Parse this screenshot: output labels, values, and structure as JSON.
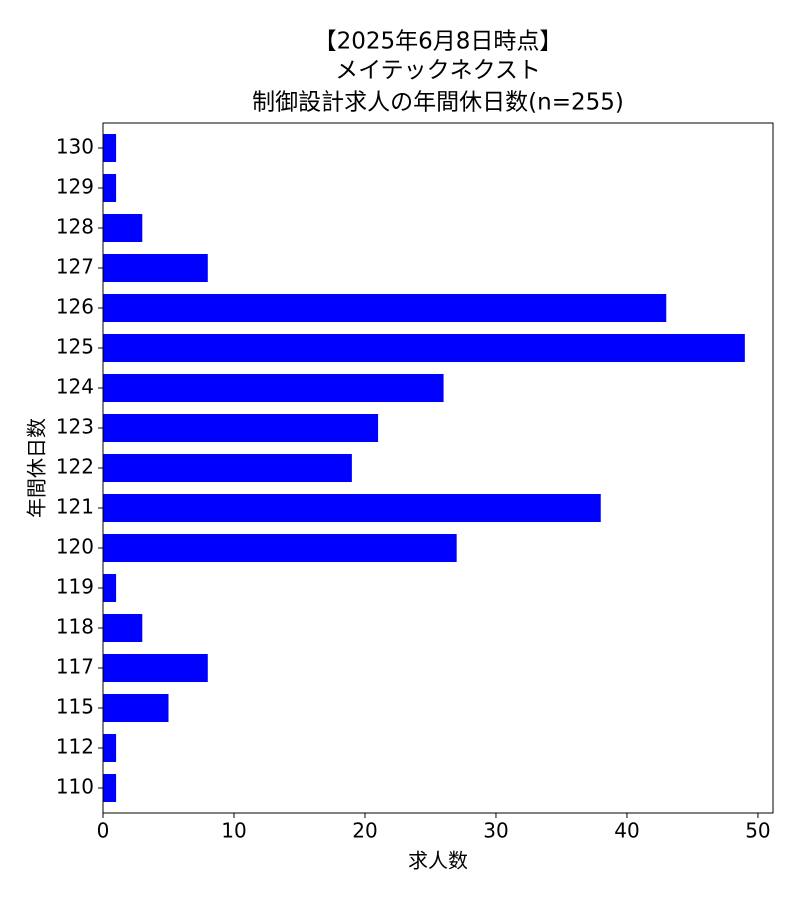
{
  "chart_data": {
    "type": "barh",
    "title": [
      "【2025年6月8日時点】",
      "メイテックネクスト",
      "制御設計求人の年間休日数(n=255)"
    ],
    "x_label": "求人数",
    "y_label": "年間休日数",
    "categories": [
      "110",
      "112",
      "115",
      "117",
      "118",
      "119",
      "120",
      "121",
      "122",
      "123",
      "124",
      "125",
      "126",
      "127",
      "128",
      "129",
      "130"
    ],
    "values": [
      1,
      1,
      5,
      8,
      3,
      1,
      27,
      38,
      19,
      21,
      26,
      49,
      43,
      8,
      3,
      1,
      1
    ],
    "color": "#0000ff",
    "xlim": [
      0,
      51.15
    ],
    "xticks": [
      0,
      10,
      20,
      30,
      40,
      50
    ]
  }
}
